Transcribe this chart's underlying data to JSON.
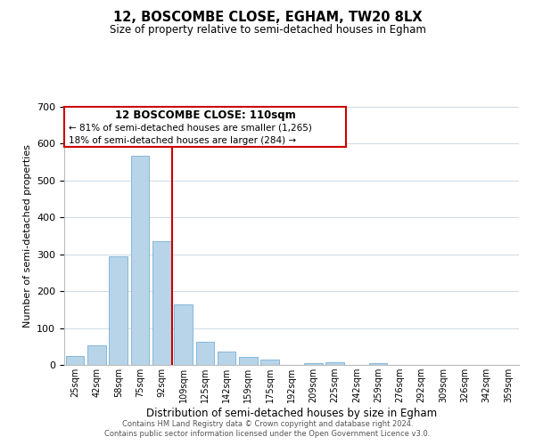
{
  "title": "12, BOSCOMBE CLOSE, EGHAM, TW20 8LX",
  "subtitle": "Size of property relative to semi-detached houses in Egham",
  "xlabel": "Distribution of semi-detached houses by size in Egham",
  "ylabel": "Number of semi-detached properties",
  "categories": [
    "25sqm",
    "42sqm",
    "58sqm",
    "75sqm",
    "92sqm",
    "109sqm",
    "125sqm",
    "142sqm",
    "159sqm",
    "175sqm",
    "192sqm",
    "209sqm",
    "225sqm",
    "242sqm",
    "259sqm",
    "276sqm",
    "292sqm",
    "309sqm",
    "326sqm",
    "342sqm",
    "359sqm"
  ],
  "values": [
    25,
    53,
    295,
    568,
    335,
    165,
    62,
    37,
    22,
    14,
    0,
    5,
    7,
    0,
    5,
    0,
    0,
    0,
    0,
    0,
    0
  ],
  "bar_color": "#b8d4e8",
  "bar_edge_color": "#7aafd4",
  "vline_color": "#cc0000",
  "annotation_title": "12 BOSCOMBE CLOSE: 110sqm",
  "annotation_line1": "← 81% of semi-detached houses are smaller (1,265)",
  "annotation_line2": "18% of semi-detached houses are larger (284) →",
  "annotation_box_color": "#ffffff",
  "annotation_box_edge": "#cc0000",
  "ylim": [
    0,
    700
  ],
  "yticks": [
    0,
    100,
    200,
    300,
    400,
    500,
    600,
    700
  ],
  "footer1": "Contains HM Land Registry data © Crown copyright and database right 2024.",
  "footer2": "Contains public sector information licensed under the Open Government Licence v3.0.",
  "grid_color": "#d0dde8"
}
